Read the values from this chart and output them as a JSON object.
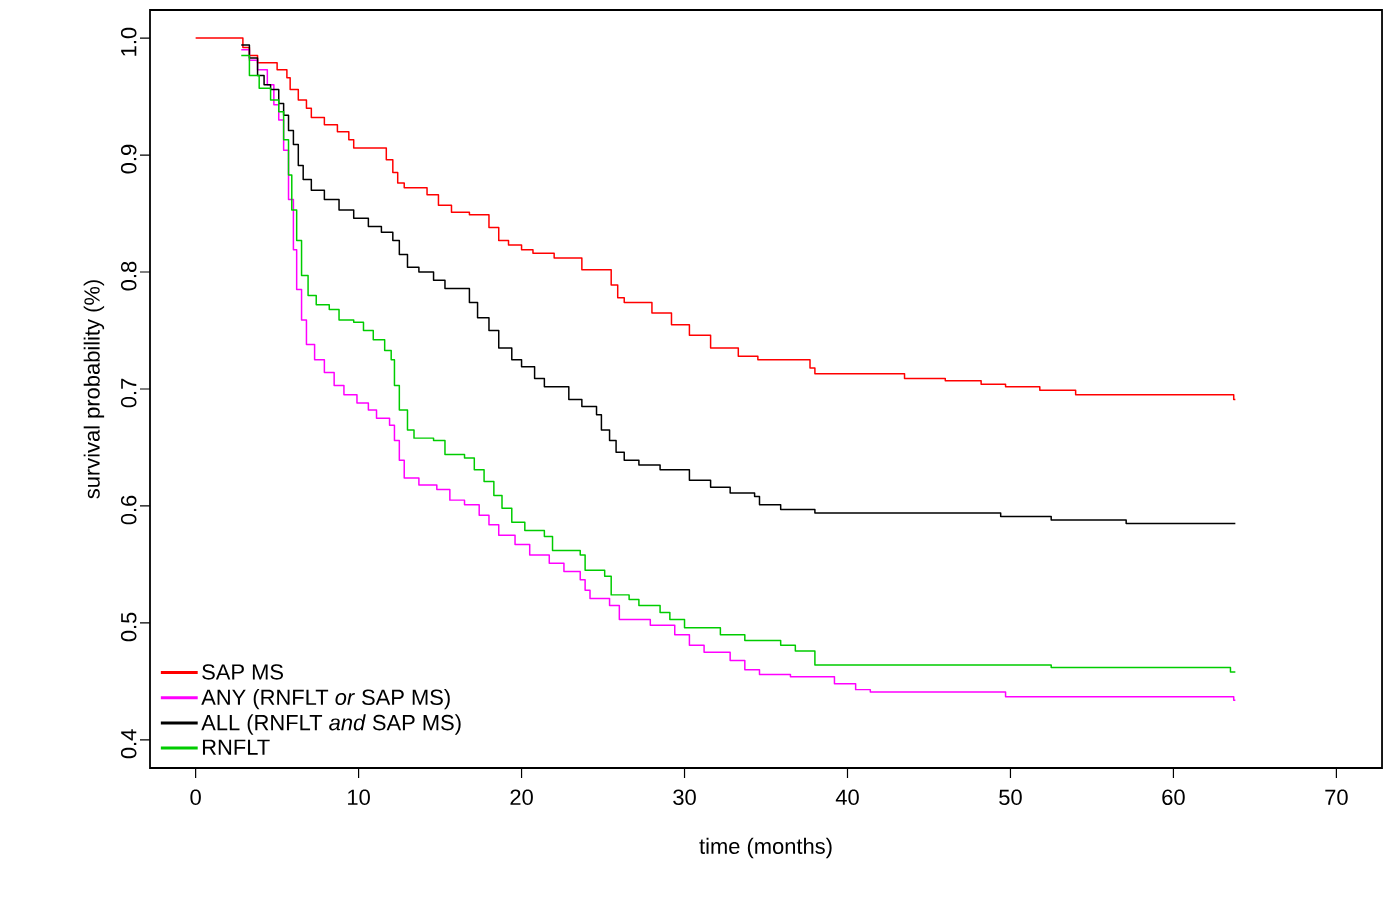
{
  "chart_data": {
    "type": "step",
    "xlabel": "time (months)",
    "ylabel": "survival probability (%)",
    "xlim": [
      -2.8,
      72.8
    ],
    "ylim": [
      0.376,
      1.024
    ],
    "xticks": [
      0,
      10,
      20,
      30,
      40,
      50,
      60,
      70
    ],
    "yticks": [
      {
        "value": 0.4,
        "label": "0.4"
      },
      {
        "value": 0.5,
        "label": "0.5"
      },
      {
        "value": 0.6,
        "label": "0.6"
      },
      {
        "value": 0.7,
        "label": "0.7"
      },
      {
        "value": 0.8,
        "label": "0.8"
      },
      {
        "value": 0.9,
        "label": "0.9"
      },
      {
        "value": 1,
        "label": "1.0"
      }
    ],
    "grid": false,
    "legend": "bottom left",
    "marker": "none",
    "line_style": "solid",
    "series": [
      {
        "name": "SAP MS",
        "color": "#ff0000",
        "x": [
          0,
          2.9,
          3.3,
          3.8,
          5.0,
          5.6,
          5.8,
          6.3,
          6.8,
          7.1,
          7.9,
          8.7,
          9.4,
          9.7,
          11.7,
          12.1,
          12.4,
          12.8,
          14.2,
          14.9,
          15.7,
          16.8,
          18.0,
          18.6,
          19.2,
          20.0,
          20.7,
          22.0,
          23.7,
          25.5,
          25.9,
          26.3,
          28.0,
          29.2,
          30.3,
          31.6,
          33.3,
          34.5,
          37.7,
          38.0,
          43.5,
          46.0,
          48.2,
          49.7,
          51.8,
          54.0,
          63.7,
          63.8
        ],
        "values": [
          1.0,
          0.992,
          0.985,
          0.979,
          0.973,
          0.966,
          0.956,
          0.947,
          0.94,
          0.932,
          0.926,
          0.92,
          0.913,
          0.906,
          0.896,
          0.885,
          0.876,
          0.872,
          0.866,
          0.857,
          0.851,
          0.849,
          0.838,
          0.827,
          0.823,
          0.819,
          0.816,
          0.812,
          0.802,
          0.789,
          0.778,
          0.774,
          0.765,
          0.755,
          0.746,
          0.735,
          0.728,
          0.725,
          0.718,
          0.713,
          0.709,
          0.707,
          0.704,
          0.702,
          0.699,
          0.695,
          0.691,
          0.691
        ]
      },
      {
        "name": "ANY (RNFLT *or* SAP MS)",
        "color": "#ff00ff",
        "x": [
          2.8,
          3.3,
          3.8,
          4.4,
          4.8,
          5.1,
          5.4,
          5.7,
          6.0,
          6.2,
          6.5,
          6.8,
          7.3,
          7.9,
          8.5,
          9.1,
          9.9,
          10.6,
          11.1,
          11.9,
          12.2,
          12.5,
          12.8,
          13.7,
          14.8,
          15.6,
          16.5,
          17.4,
          18.0,
          18.6,
          19.6,
          20.5,
          21.7,
          22.6,
          23.6,
          23.9,
          24.2,
          25.4,
          26.0,
          27.9,
          29.4,
          30.3,
          31.2,
          32.8,
          33.7,
          34.6,
          36.5,
          39.2,
          40.5,
          41.4,
          49.7,
          63.7,
          63.8
        ],
        "values": [
          0.99,
          0.981,
          0.973,
          0.96,
          0.943,
          0.93,
          0.904,
          0.862,
          0.819,
          0.785,
          0.759,
          0.738,
          0.725,
          0.714,
          0.703,
          0.695,
          0.688,
          0.682,
          0.675,
          0.669,
          0.656,
          0.639,
          0.624,
          0.618,
          0.614,
          0.605,
          0.601,
          0.592,
          0.584,
          0.575,
          0.567,
          0.558,
          0.551,
          0.544,
          0.537,
          0.528,
          0.521,
          0.515,
          0.503,
          0.498,
          0.49,
          0.481,
          0.475,
          0.468,
          0.46,
          0.456,
          0.454,
          0.448,
          0.443,
          0.441,
          0.437,
          0.434,
          0.434
        ]
      },
      {
        "name": "ALL (RNFLT *and* SAP MS)",
        "color": "#000000",
        "x": [
          2.8,
          3.3,
          3.8,
          4.2,
          4.6,
          5.1,
          5.4,
          5.7,
          6.0,
          6.3,
          6.6,
          7.1,
          7.9,
          8.8,
          9.7,
          10.6,
          11.4,
          12.1,
          12.5,
          13.0,
          13.7,
          14.6,
          15.3,
          16.8,
          17.3,
          18.0,
          18.6,
          19.4,
          20.0,
          20.8,
          21.4,
          22.9,
          23.7,
          24.6,
          24.9,
          25.4,
          25.8,
          26.3,
          27.2,
          28.5,
          30.3,
          31.6,
          32.8,
          34.3,
          34.6,
          35.9,
          38.0,
          49.4,
          52.5,
          57.1,
          63.8
        ],
        "values": [
          0.994,
          0.983,
          0.968,
          0.96,
          0.956,
          0.944,
          0.934,
          0.921,
          0.909,
          0.891,
          0.879,
          0.87,
          0.862,
          0.853,
          0.846,
          0.839,
          0.834,
          0.827,
          0.815,
          0.804,
          0.8,
          0.793,
          0.786,
          0.774,
          0.761,
          0.75,
          0.735,
          0.725,
          0.719,
          0.709,
          0.702,
          0.691,
          0.685,
          0.678,
          0.665,
          0.656,
          0.646,
          0.639,
          0.635,
          0.631,
          0.622,
          0.616,
          0.611,
          0.608,
          0.601,
          0.597,
          0.594,
          0.591,
          0.588,
          0.585,
          0.585
        ]
      },
      {
        "name": "RNFLT",
        "color": "#00cc00",
        "x": [
          2.8,
          3.3,
          3.9,
          4.6,
          5.1,
          5.4,
          5.7,
          5.9,
          6.2,
          6.5,
          6.9,
          7.4,
          8.2,
          8.8,
          9.7,
          10.3,
          10.9,
          11.6,
          12.0,
          12.2,
          12.5,
          13.0,
          13.4,
          14.6,
          15.3,
          16.5,
          17.1,
          17.7,
          18.3,
          18.8,
          19.4,
          20.2,
          21.4,
          21.9,
          23.6,
          23.9,
          25.1,
          25.5,
          26.6,
          27.2,
          28.5,
          29.1,
          30.0,
          32.2,
          33.7,
          35.9,
          36.8,
          38.0,
          52.5,
          63.5,
          63.8
        ],
        "values": [
          0.985,
          0.968,
          0.957,
          0.947,
          0.937,
          0.913,
          0.883,
          0.853,
          0.827,
          0.797,
          0.78,
          0.772,
          0.768,
          0.759,
          0.757,
          0.75,
          0.742,
          0.733,
          0.725,
          0.703,
          0.682,
          0.665,
          0.658,
          0.656,
          0.644,
          0.641,
          0.631,
          0.621,
          0.609,
          0.598,
          0.586,
          0.579,
          0.574,
          0.562,
          0.558,
          0.545,
          0.54,
          0.524,
          0.52,
          0.515,
          0.509,
          0.503,
          0.496,
          0.49,
          0.485,
          0.481,
          0.476,
          0.464,
          0.462,
          0.458,
          0.458
        ]
      }
    ]
  }
}
